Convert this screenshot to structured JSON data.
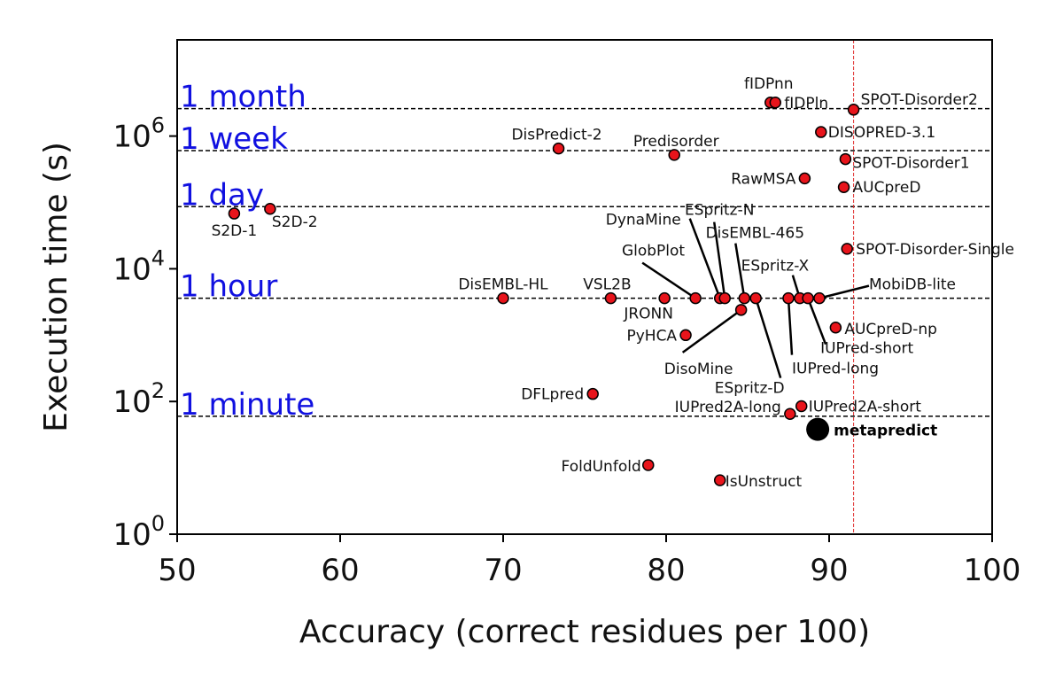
{
  "chart_data": {
    "type": "scatter",
    "xlabel": "Accuracy (correct residues per 100)",
    "ylabel": "Execution time (s)",
    "xlim": [
      50,
      100
    ],
    "ylim": [
      1,
      10000000
    ],
    "yscale": "log",
    "x_ticks": [
      "50",
      "60",
      "70",
      "80",
      "90",
      "100"
    ],
    "y_ticks": [
      {
        "value": 1,
        "base": "10",
        "exp": "0"
      },
      {
        "value": 100,
        "base": "10",
        "exp": "2"
      },
      {
        "value": 10000,
        "base": "10",
        "exp": "4"
      },
      {
        "value": 1000000,
        "base": "10",
        "exp": "6"
      }
    ],
    "reference_lines": [
      {
        "label": "1 month",
        "value": 2592000
      },
      {
        "label": "1 week",
        "value": 604800
      },
      {
        "label": "1 day",
        "value": 86400
      },
      {
        "label": "1 hour",
        "value": 3600
      },
      {
        "label": "1 minute",
        "value": 60
      }
    ],
    "vertical_reference": {
      "x": 91.5,
      "color": "#e03030"
    },
    "colors": {
      "point_fill": "#e8141b",
      "highlight": "#000000",
      "ref_text": "#1010e0"
    },
    "points": [
      {
        "name": "fIDPnn",
        "x": 86.4,
        "y": 3200000
      },
      {
        "name": "fIDPln",
        "x": 86.7,
        "y": 3200000
      },
      {
        "name": "SPOT-Disorder2",
        "x": 91.5,
        "y": 2500000
      },
      {
        "name": "DISOPRED-3.1",
        "x": 89.5,
        "y": 1150000
      },
      {
        "name": "DisPredict-2",
        "x": 73.4,
        "y": 650000
      },
      {
        "name": "Predisorder",
        "x": 80.5,
        "y": 520000
      },
      {
        "name": "SPOT-Disorder1",
        "x": 91.0,
        "y": 450000
      },
      {
        "name": "RawMSA",
        "x": 88.5,
        "y": 230000
      },
      {
        "name": "AUCpreD",
        "x": 90.9,
        "y": 170000
      },
      {
        "name": "S2D-1",
        "x": 53.5,
        "y": 68000
      },
      {
        "name": "S2D-2",
        "x": 55.7,
        "y": 80000
      },
      {
        "name": "SPOT-Disorder-Single",
        "x": 91.1,
        "y": 20000
      },
      {
        "name": "DisEMBL-HL",
        "x": 70.0,
        "y": 3600
      },
      {
        "name": "VSL2B",
        "x": 76.6,
        "y": 3600
      },
      {
        "name": "JRONN",
        "x": 79.9,
        "y": 3600
      },
      {
        "name": "GlobPlot",
        "x": 81.8,
        "y": 3600
      },
      {
        "name": "DynaMine",
        "x": 83.3,
        "y": 3600
      },
      {
        "name": "ESpritz-N",
        "x": 83.6,
        "y": 3600
      },
      {
        "name": "DisEMBL-465",
        "x": 84.8,
        "y": 3600
      },
      {
        "name": "ESpritz-D",
        "x": 85.5,
        "y": 3600
      },
      {
        "name": "IUPred-long",
        "x": 87.5,
        "y": 3600
      },
      {
        "name": "ESpritz-X",
        "x": 88.2,
        "y": 3600
      },
      {
        "name": "IUPred-short",
        "x": 88.7,
        "y": 3600
      },
      {
        "name": "MobiDB-lite",
        "x": 89.4,
        "y": 3600
      },
      {
        "name": "DisoMine",
        "x": 84.6,
        "y": 2400
      },
      {
        "name": "AUCpreD-np",
        "x": 90.4,
        "y": 1300
      },
      {
        "name": "PyHCA",
        "x": 81.2,
        "y": 1000
      },
      {
        "name": "DFLpred",
        "x": 75.5,
        "y": 130
      },
      {
        "name": "IUPred2A-short",
        "x": 88.3,
        "y": 85
      },
      {
        "name": "IUPred2A-long",
        "x": 87.6,
        "y": 65
      },
      {
        "name": "metapredict",
        "x": 89.3,
        "y": 38,
        "highlight": true
      },
      {
        "name": "FoldUnfold",
        "x": 78.9,
        "y": 11
      },
      {
        "name": "IsUnstruct",
        "x": 83.3,
        "y": 6.5
      }
    ]
  }
}
